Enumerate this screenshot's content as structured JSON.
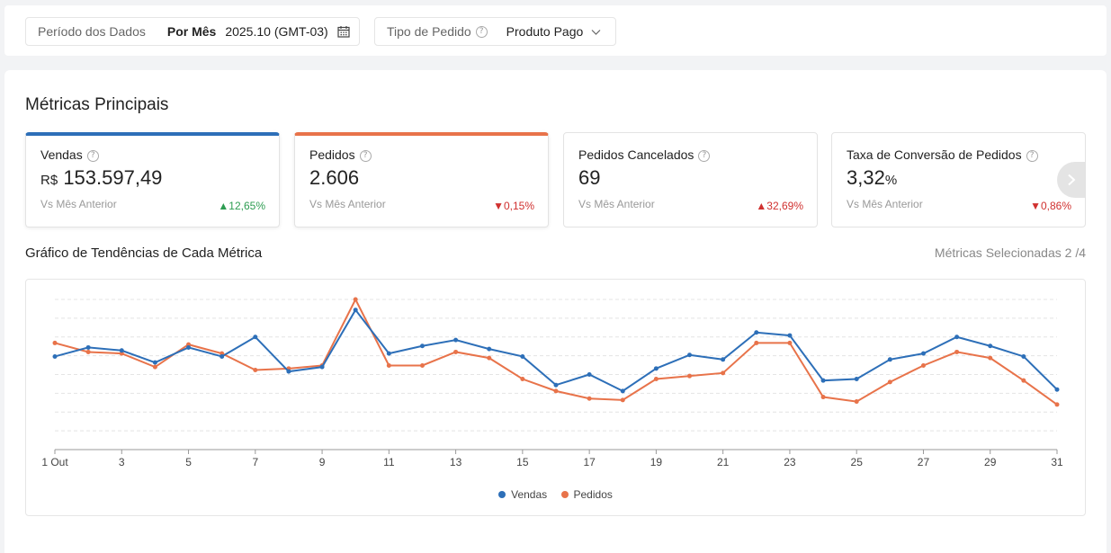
{
  "filters": {
    "period_label": "Período dos Dados",
    "period_mode": "Por Mês",
    "period_value": "2025.10 (GMT-03)",
    "order_type_label": "Tipo de Pedido",
    "order_type_value": "Produto Pago"
  },
  "main": {
    "title": "Métricas Principais",
    "cards": [
      {
        "title": "Vendas",
        "currency": "R$",
        "value": "153.597,49",
        "unit": "",
        "compare": "Vs Mês Anterior",
        "delta": "12,65%",
        "trend": "up"
      },
      {
        "title": "Pedidos",
        "currency": "",
        "value": "2.606",
        "unit": "",
        "compare": "Vs Mês Anterior",
        "delta": "0,15%",
        "trend": "down"
      },
      {
        "title": "Pedidos Cancelados",
        "currency": "",
        "value": "69",
        "unit": "",
        "compare": "Vs Mês Anterior",
        "delta": "32,69%",
        "trend": "up"
      },
      {
        "title": "Taxa de Conversão de Pedidos",
        "currency": "",
        "value": "3,32",
        "unit": "%",
        "compare": "Vs Mês Anterior",
        "delta": "0,86%",
        "trend": "down"
      }
    ],
    "trend_title": "Gráfico de Tendências de Cada Métrica",
    "selected_metrics": "Métricas Selecionadas 2 /4"
  },
  "colors": {
    "vendas": "#2d6fb8",
    "pedidos": "#e8734a",
    "up": "#2e9d52",
    "down": "#d0302f"
  },
  "chart_data": {
    "type": "line",
    "x": [
      1,
      2,
      3,
      4,
      5,
      6,
      7,
      8,
      9,
      10,
      11,
      12,
      13,
      14,
      15,
      16,
      17,
      18,
      19,
      20,
      21,
      22,
      23,
      24,
      25,
      26,
      27,
      28,
      29,
      30,
      31
    ],
    "x_tick_labels": [
      "1 Out",
      "3",
      "5",
      "7",
      "9",
      "11",
      "13",
      "15",
      "17",
      "19",
      "21",
      "23",
      "25",
      "27",
      "29",
      "31"
    ],
    "series": [
      {
        "name": "Vendas",
        "values": [
          62,
          68,
          66,
          58,
          68,
          62,
          75,
          52,
          55,
          93,
          64,
          69,
          73,
          67,
          62,
          43,
          50,
          39,
          54,
          63,
          60,
          78,
          76,
          46,
          47,
          60,
          64,
          75,
          69,
          62,
          40
        ]
      },
      {
        "name": "Pedidos",
        "values": [
          71,
          65,
          64,
          55,
          70,
          64,
          53,
          54,
          56,
          100,
          56,
          56,
          65,
          61,
          47,
          39,
          34,
          33,
          47,
          49,
          51,
          71,
          71,
          35,
          32,
          45,
          56,
          65,
          61,
          46,
          30
        ]
      }
    ],
    "y_scale": "relative (no y-axis labels shown)",
    "grid": "horizontal dashed",
    "legend": "bottom"
  }
}
